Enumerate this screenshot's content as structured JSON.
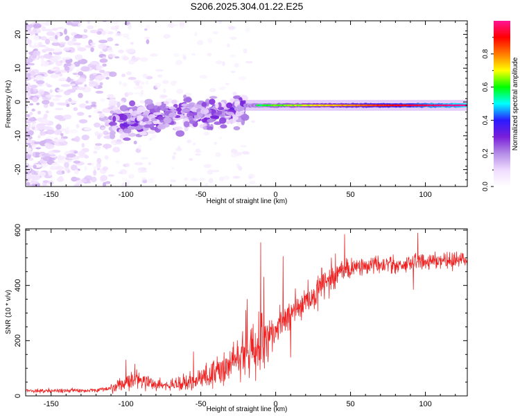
{
  "title": "S206.2025.304.01.22.E25",
  "chart_data": [
    {
      "type": "heatmap",
      "name": "spectrogram",
      "xlabel": "Height of straight line (km)",
      "ylabel": "Frequency (Hz)",
      "xlim": [
        -167,
        128
      ],
      "ylim": [
        -25,
        24
      ],
      "xticks": [
        -150,
        -100,
        -50,
        0,
        50,
        100
      ],
      "yticks": [
        -20,
        -10,
        0,
        10,
        20
      ],
      "colorbar": {
        "label": "Normalized spectral amplitude",
        "range": [
          0,
          1
        ],
        "ticks": [
          "0.0",
          "0.2",
          "0.4",
          "0.6",
          "0.8"
        ],
        "tick_values": [
          0,
          0.2,
          0.4,
          0.6,
          0.8
        ],
        "colors": [
          "#ffffff",
          "#f0dcff",
          "#b48ce6",
          "#7a1fd9",
          "#2a1aff",
          "#00ffff",
          "#00ff00",
          "#ffff00",
          "#ff7a00",
          "#ff0000",
          "#ff1493"
        ]
      },
      "features": [
        {
          "name": "noise-region",
          "x_range": [
            -167,
            -110
          ],
          "freq_range": [
            -25,
            24
          ],
          "amplitude": 0.08
        },
        {
          "name": "broadband-band",
          "x_range": [
            -110,
            -20
          ],
          "freq_center": -3,
          "freq_halfwidth": 6,
          "amplitude": 0.2
        },
        {
          "name": "signal-line",
          "x_range": [
            -20,
            128
          ],
          "freq_center": -1,
          "amplitude": 0.75
        }
      ]
    },
    {
      "type": "line",
      "name": "snr",
      "xlabel": "Height of straight line (km)",
      "ylabel": "SNR (10 * v/v)",
      "xlim": [
        -167,
        128
      ],
      "ylim": [
        0,
        605
      ],
      "xticks": [
        -150,
        -100,
        -50,
        0,
        50,
        100
      ],
      "yticks": [
        0,
        200,
        400,
        600
      ],
      "color": "#ee2222",
      "trend": [
        {
          "x": -167,
          "y": 18
        },
        {
          "x": -120,
          "y": 20
        },
        {
          "x": -110,
          "y": 28
        },
        {
          "x": -100,
          "y": 45
        },
        {
          "x": -92,
          "y": 60
        },
        {
          "x": -80,
          "y": 42
        },
        {
          "x": -70,
          "y": 38
        },
        {
          "x": -60,
          "y": 48
        },
        {
          "x": -50,
          "y": 65
        },
        {
          "x": -40,
          "y": 85
        },
        {
          "x": -30,
          "y": 120
        },
        {
          "x": -20,
          "y": 160
        },
        {
          "x": -12,
          "y": 175
        },
        {
          "x": -8,
          "y": 190
        },
        {
          "x": 0,
          "y": 245
        },
        {
          "x": 10,
          "y": 300
        },
        {
          "x": 20,
          "y": 340
        },
        {
          "x": 30,
          "y": 395
        },
        {
          "x": 40,
          "y": 445
        },
        {
          "x": 50,
          "y": 460
        },
        {
          "x": 60,
          "y": 470
        },
        {
          "x": 80,
          "y": 475
        },
        {
          "x": 100,
          "y": 485
        },
        {
          "x": 128,
          "y": 490
        }
      ],
      "spikes": [
        {
          "x": -100,
          "y": 130
        },
        {
          "x": -94,
          "y": 115
        },
        {
          "x": -55,
          "y": 160
        },
        {
          "x": -20,
          "y": 310
        },
        {
          "x": -19,
          "y": 350
        },
        {
          "x": -15,
          "y": 260
        },
        {
          "x": -10,
          "y": 555
        },
        {
          "x": -8,
          "y": 430
        },
        {
          "x": 5,
          "y": 505
        },
        {
          "x": 10,
          "y": 140
        },
        {
          "x": 40,
          "y": 515
        },
        {
          "x": 46,
          "y": 585
        },
        {
          "x": 95,
          "y": 590
        },
        {
          "x": 92,
          "y": 385
        }
      ]
    }
  ]
}
